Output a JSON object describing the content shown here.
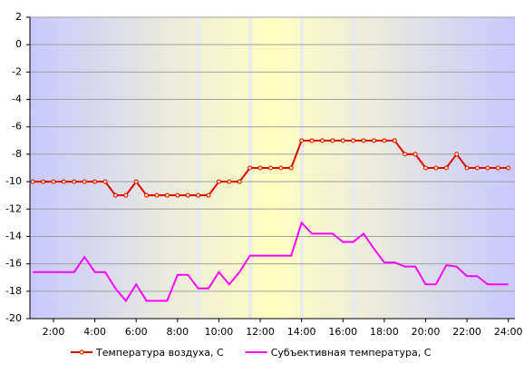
{
  "chart_data": {
    "type": "line",
    "x": [
      1,
      1.5,
      2,
      2.5,
      3,
      3.5,
      4,
      4.5,
      5,
      5.5,
      6,
      6.5,
      7,
      7.5,
      8,
      8.5,
      9,
      9.5,
      10,
      10.5,
      11,
      11.5,
      12,
      12.5,
      13,
      13.5,
      14,
      14.5,
      15,
      15.5,
      16,
      16.5,
      17,
      17.5,
      18,
      18.5,
      19,
      19.5,
      20,
      20.5,
      21,
      21.5,
      22,
      22.5,
      23,
      23.5,
      24
    ],
    "xlim": [
      0.86,
      24.32
    ],
    "xticks": [
      {
        "value": 2,
        "label": "2:00"
      },
      {
        "value": 4,
        "label": "4:00"
      },
      {
        "value": 6,
        "label": "6:00"
      },
      {
        "value": 8,
        "label": "8:00"
      },
      {
        "value": 10,
        "label": "10:00"
      },
      {
        "value": 12,
        "label": "12:00"
      },
      {
        "value": 14,
        "label": "14:00"
      },
      {
        "value": 16,
        "label": "16:00"
      },
      {
        "value": 18,
        "label": "18:00"
      },
      {
        "value": 20,
        "label": "20:00"
      },
      {
        "value": 22,
        "label": "22:00"
      },
      {
        "value": 24,
        "label": "24:00"
      }
    ],
    "ylim": [
      -20,
      2
    ],
    "yticks": [
      2,
      0,
      -2,
      -4,
      -6,
      -8,
      -10,
      -12,
      -14,
      -16,
      -18,
      -20
    ],
    "grid": true,
    "series": [
      {
        "name": "Температура воздуха, С",
        "color": "#dd0000",
        "marker": "circle",
        "values": [
          -10,
          -10,
          -10,
          -10,
          -10,
          -10,
          -10,
          -10,
          -11,
          -11,
          -10,
          -11,
          -11,
          -11,
          -11,
          -11,
          -11,
          -11,
          -10,
          -10,
          -10,
          -9,
          -9,
          -9,
          -9,
          -9,
          -7,
          -7,
          -7,
          -7,
          -7,
          -7,
          -7,
          -7,
          -7,
          -7,
          -8,
          -8,
          -9,
          -9,
          -9,
          -8,
          -9,
          -9,
          -9,
          -9,
          -9
        ]
      },
      {
        "name": "Субъективная температура, С",
        "color": "#ff00ff",
        "values": [
          -16.6,
          -16.6,
          -16.6,
          -16.6,
          -16.6,
          -15.5,
          -16.6,
          -16.6,
          -17.8,
          -18.7,
          -17.5,
          -18.7,
          -18.7,
          -18.7,
          -16.8,
          -16.8,
          -17.8,
          -17.8,
          -16.6,
          -17.5,
          -16.6,
          -15.4,
          -15.4,
          -15.4,
          -15.4,
          -15.4,
          -13,
          -13.8,
          -13.8,
          -13.8,
          -14.4,
          -14.4,
          -13.8,
          -14.9,
          -15.9,
          -15.9,
          -16.2,
          -16.2,
          -17.5,
          -17.5,
          -16.1,
          -16.2,
          -16.9,
          -16.9,
          -17.5,
          -17.5,
          -17.5
        ]
      }
    ]
  }
}
